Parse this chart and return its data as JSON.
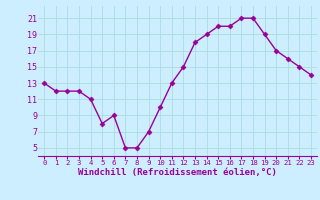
{
  "x": [
    0,
    1,
    2,
    3,
    4,
    5,
    6,
    7,
    8,
    9,
    10,
    11,
    12,
    13,
    14,
    15,
    16,
    17,
    18,
    19,
    20,
    21,
    22,
    23
  ],
  "y": [
    13,
    12,
    12,
    12,
    11,
    8,
    9,
    5,
    5,
    7,
    10,
    13,
    15,
    18,
    19,
    20,
    20,
    21,
    21,
    19,
    17,
    16,
    15,
    14
  ],
  "line_color": "#990099",
  "marker": "D",
  "marker_size": 2.5,
  "bg_color": "#cceeff",
  "grid_color": "#aadddd",
  "xlabel": "Windchill (Refroidissement éolien,°C)",
  "xlabel_color": "#990099",
  "xlabel_fontsize": 6.5,
  "yticks": [
    5,
    7,
    9,
    11,
    13,
    15,
    17,
    19,
    21
  ],
  "xticks": [
    0,
    1,
    2,
    3,
    4,
    5,
    6,
    7,
    8,
    9,
    10,
    11,
    12,
    13,
    14,
    15,
    16,
    17,
    18,
    19,
    20,
    21,
    22,
    23
  ],
  "ylim": [
    4.0,
    22.5
  ],
  "xlim": [
    -0.5,
    23.5
  ],
  "ytick_fontsize": 6.0,
  "xtick_fontsize": 5.2,
  "tick_color": "#990099",
  "spine_color": "#990099",
  "linewidth": 1.0
}
